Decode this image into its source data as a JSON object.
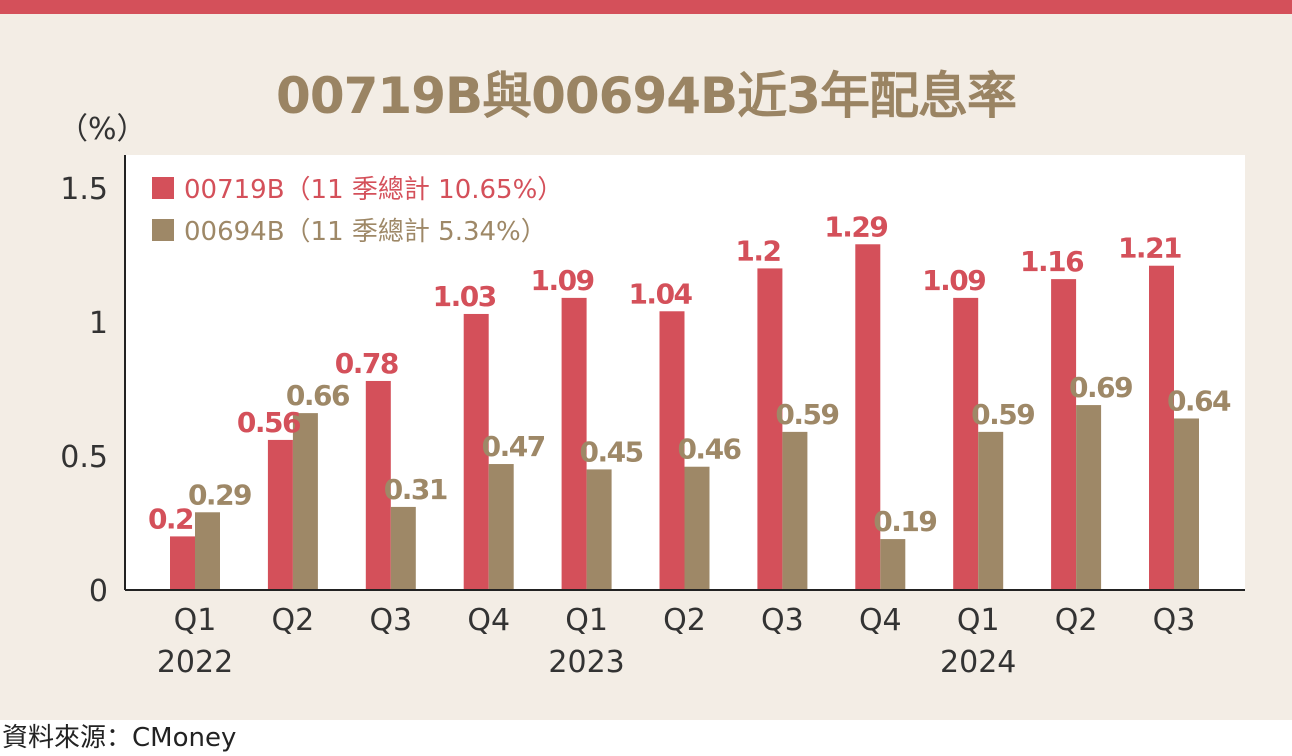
{
  "title": "00719B與00694B近3年配息率",
  "unit_label": "（%）",
  "source": "資料來源：CMoney",
  "colors": {
    "series_a": "#d4505a",
    "series_b": "#9e8867",
    "title": "#9a8463",
    "plot_bg": "#ffffff",
    "page_bg": "#f3ede5",
    "top_bar": "#d4505a"
  },
  "chart_data": {
    "type": "bar",
    "title": "00719B與00694B近3年配息率",
    "ylabel": "（%）",
    "xlabel": "",
    "ylim": [
      0,
      1.6
    ],
    "yticks": [
      0,
      0.5,
      1,
      1.5
    ],
    "ytick_labels": [
      "0",
      "0.5",
      "1",
      "1.5"
    ],
    "categories": [
      "Q1",
      "Q2",
      "Q3",
      "Q4",
      "Q1",
      "Q2",
      "Q3",
      "Q4",
      "Q1",
      "Q2",
      "Q3"
    ],
    "year_labels": [
      {
        "label": "2022",
        "from": 0,
        "to": 0
      },
      {
        "label": "2023",
        "from": 4,
        "to": 4
      },
      {
        "label": "2024",
        "from": 8,
        "to": 8
      }
    ],
    "grid": false,
    "legend_position": "top-left",
    "series": [
      {
        "name": "00719B（11 季總計 10.65%）",
        "values": [
          0.2,
          0.56,
          0.78,
          1.03,
          1.09,
          1.04,
          1.2,
          1.29,
          1.09,
          1.16,
          1.21
        ],
        "labels": [
          "0.2",
          "0.56",
          "0.78",
          "1.03",
          "1.09",
          "1.04",
          "1.2",
          "1.29",
          "1.09",
          "1.16",
          "1.21"
        ]
      },
      {
        "name": "00694B（11 季總計 5.34%）",
        "values": [
          0.29,
          0.66,
          0.31,
          0.47,
          0.45,
          0.46,
          0.59,
          0.19,
          0.59,
          0.69,
          0.64
        ],
        "labels": [
          "0.29",
          "0.66",
          "0.31",
          "0.47",
          "0.45",
          "0.46",
          "0.59",
          "0.19",
          "0.59",
          "0.69",
          "0.64"
        ]
      }
    ]
  }
}
